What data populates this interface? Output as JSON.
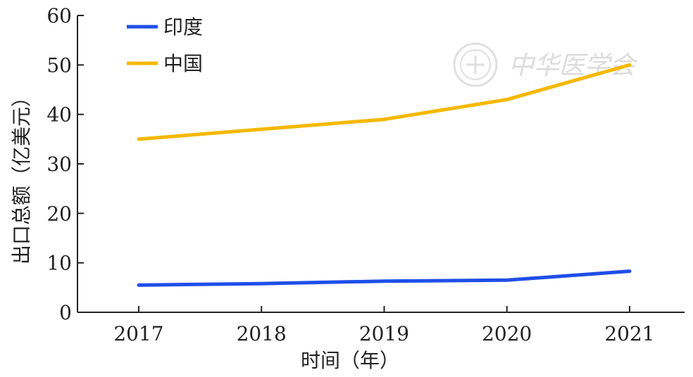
{
  "chart_data": {
    "type": "line",
    "x": [
      "2017",
      "2018",
      "2019",
      "2020",
      "2021"
    ],
    "series": [
      {
        "name": "印度",
        "values": [
          5.5,
          5.8,
          6.3,
          6.5,
          8.3
        ],
        "color": "#1f4fe8"
      },
      {
        "name": "中国",
        "values": [
          35,
          37,
          39,
          43,
          50
        ],
        "color": "#f5b800"
      }
    ],
    "xlabel": "时间（年）",
    "ylabel": "出口总额（亿美元）",
    "ylim": [
      0,
      60
    ],
    "yticks": [
      0,
      10,
      20,
      30,
      40,
      50,
      60
    ],
    "legend_position": "top-left",
    "grid": false,
    "drop_line_color": "#8fb0ee"
  },
  "watermark": {
    "text": "中华医学会"
  }
}
